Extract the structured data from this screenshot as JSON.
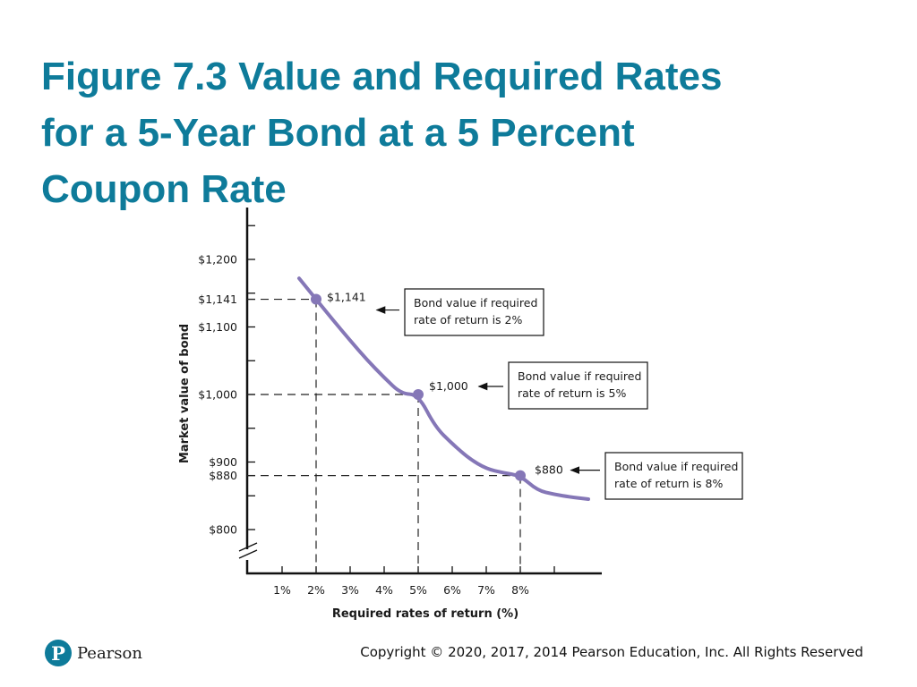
{
  "slide": {
    "title_lines": [
      "Figure 7.3 Value and Required Rates",
      "for a 5-Year Bond at a 5 Percent",
      "Coupon Rate"
    ],
    "copyright": "Copyright © 2020, 2017, 2014 Pearson Education, Inc. All Rights Reserved",
    "logo_text": "Pearson",
    "logo_mark": "P",
    "accent_color": "#0e7b9a"
  },
  "chart_data": {
    "type": "line",
    "xlabel": "Required rates of return (%)",
    "ylabel": "Market value of bond",
    "x_ticks": [
      1,
      2,
      3,
      4,
      5,
      6,
      7,
      8,
      9
    ],
    "x_tick_labels": [
      "1%",
      "2%",
      "3%",
      "4%",
      "5%",
      "6%",
      "7%",
      "8%",
      ""
    ],
    "y_ticks": [
      800,
      850,
      880,
      900,
      950,
      1000,
      1050,
      1100,
      1141,
      1150,
      1200,
      1250
    ],
    "y_tick_labels": [
      "$800",
      "",
      "$880",
      "$900",
      "",
      "$1,000",
      "",
      "$1,100",
      "$1,141",
      "",
      "$1,200",
      ""
    ],
    "xlim": [
      0,
      10
    ],
    "ylim": [
      760,
      1270
    ],
    "axis_break": true,
    "curve_color": "#8577b7",
    "series": [
      {
        "x": [
          1.5,
          2,
          2.5,
          3,
          3.5,
          4,
          4.5,
          5,
          5.5,
          6,
          6.5,
          7,
          7.5,
          8,
          8.5,
          9,
          9.5,
          10
        ],
        "values": [
          1172,
          1141,
          1110,
          1080,
          1051,
          1025,
          1001,
          1000,
          952,
          927,
          905,
          890,
          884,
          880,
          858,
          852,
          848,
          845
        ]
      }
    ],
    "highlighted_points": [
      {
        "x": 2,
        "y": 1141,
        "label": "$1,141"
      },
      {
        "x": 5,
        "y": 1000,
        "label": "$1,000"
      },
      {
        "x": 8,
        "y": 880,
        "label": "$880"
      }
    ],
    "annotations": [
      {
        "point": 0,
        "lines": [
          "Bond value if required",
          "rate of return is 2%"
        ]
      },
      {
        "point": 1,
        "lines": [
          "Bond value if required",
          "rate of return is 5%"
        ]
      },
      {
        "point": 2,
        "lines": [
          "Bond value if required",
          "rate of return is 8%"
        ]
      }
    ]
  }
}
